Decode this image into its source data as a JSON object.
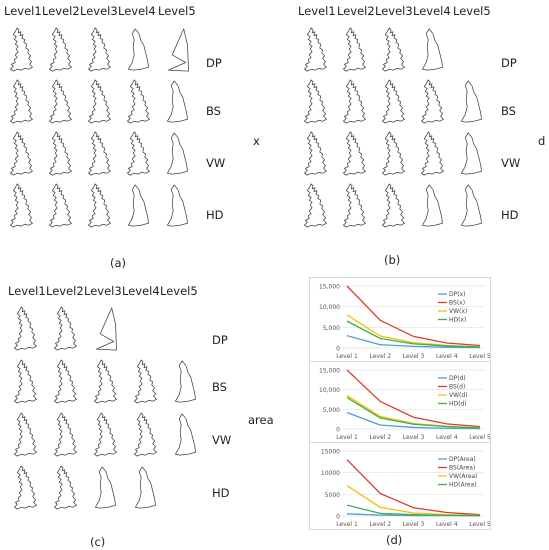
{
  "figure": {
    "levels": [
      "Level1",
      "Level2",
      "Level3",
      "Level4",
      "Level5"
    ],
    "methods": [
      "DP",
      "BS",
      "VW",
      "HD"
    ],
    "panel_labels": {
      "a": "(a)",
      "b": "(b)",
      "c": "(c)",
      "d": "(d)"
    },
    "side_labels": {
      "x": "x",
      "d": "d",
      "area": "area"
    },
    "map_icon": "uk-outline-icon"
  },
  "colors": {
    "DP": "#4a9fd8",
    "BS": "#e03a2f",
    "VW": "#f2c200",
    "HD": "#3fae4a",
    "grid": "#e1e1e1",
    "map_stroke": "#444444"
  },
  "chart_data": [
    {
      "type": "line",
      "categories": [
        "Level 1",
        "Level 2",
        "Level 3",
        "Level 4",
        "Level 5"
      ],
      "ylim": [
        0,
        15000
      ],
      "yticks": [
        "0",
        "5,000",
        "10,000",
        "15,000"
      ],
      "ytick_values": [
        0,
        5000,
        10000,
        15000
      ],
      "legend_position": "right",
      "series": [
        {
          "name": "DP(x)",
          "key": "DP",
          "values": [
            3000,
            800,
            400,
            200,
            100
          ]
        },
        {
          "name": "BS(x)",
          "key": "BS",
          "values": [
            15000,
            6700,
            2800,
            1200,
            600
          ]
        },
        {
          "name": "VW(x)",
          "key": "VW",
          "values": [
            8000,
            2900,
            1300,
            600,
            300
          ]
        },
        {
          "name": "HD(x)",
          "key": "HD",
          "values": [
            6500,
            2300,
            1000,
            500,
            250
          ]
        }
      ]
    },
    {
      "type": "line",
      "categories": [
        "Level 1",
        "Level 2",
        "Level 3",
        "Level 4",
        "Level 5"
      ],
      "ylim": [
        0,
        15000
      ],
      "yticks": [
        "0",
        "5,000",
        "10,000",
        "15,000"
      ],
      "ytick_values": [
        0,
        5000,
        10000,
        15000
      ],
      "legend_position": "right",
      "series": [
        {
          "name": "DP(d)",
          "key": "DP",
          "values": [
            4200,
            1000,
            400,
            200,
            100
          ]
        },
        {
          "name": "BS(d)",
          "key": "BS",
          "values": [
            15000,
            7000,
            3000,
            1300,
            600
          ]
        },
        {
          "name": "VW(d)",
          "key": "VW",
          "values": [
            8500,
            3200,
            1400,
            700,
            300
          ]
        },
        {
          "name": "HD(d)",
          "key": "HD",
          "values": [
            8000,
            2800,
            1200,
            600,
            250
          ]
        }
      ]
    },
    {
      "type": "line",
      "categories": [
        "Level 1",
        "Level 2",
        "Level 3",
        "Level 4",
        "Level 5"
      ],
      "ylim": [
        0,
        15000
      ],
      "yticks": [
        "0",
        "5000",
        "10000",
        "15000"
      ],
      "ytick_values": [
        0,
        5000,
        10000,
        15000
      ],
      "legend_position": "right",
      "series": [
        {
          "name": "DP(Area)",
          "key": "DP",
          "values": [
            500,
            200,
            100,
            80,
            50
          ]
        },
        {
          "name": "BS(Area)",
          "key": "BS",
          "values": [
            13000,
            5200,
            1900,
            800,
            300
          ]
        },
        {
          "name": "VW(Area)",
          "key": "VW",
          "values": [
            7000,
            2000,
            700,
            300,
            150
          ]
        },
        {
          "name": "HD(Area)",
          "key": "HD",
          "values": [
            2500,
            600,
            300,
            150,
            100
          ]
        }
      ]
    }
  ]
}
